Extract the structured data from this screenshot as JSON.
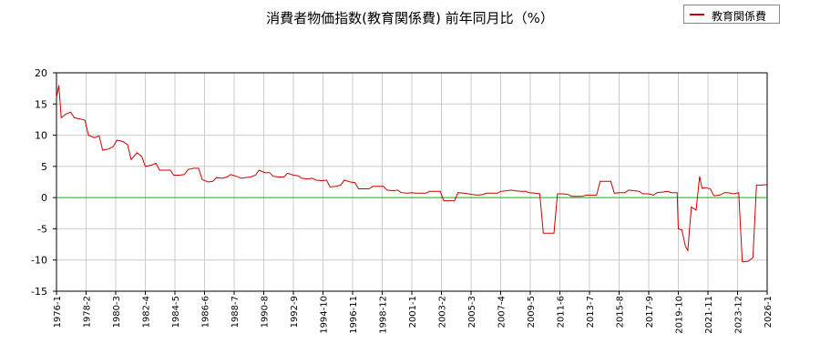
{
  "chart_data": {
    "type": "line",
    "title": "消費者物価指数(教育関係費) 前年同月比（%）",
    "legend": {
      "position": "top-right",
      "entries": [
        "教育関係費"
      ]
    },
    "grid": true,
    "ylim": [
      -15,
      20
    ],
    "yticks": [
      20,
      15,
      10,
      5,
      0,
      -5,
      -10,
      -15
    ],
    "xlim": [
      "1976-01",
      "2026-01"
    ],
    "xticks": [
      "1976-1",
      "1978-2",
      "1980-3",
      "1982-4",
      "1984-5",
      "1986-6",
      "1988-7",
      "1990-8",
      "1992-9",
      "1994-10",
      "1996-11",
      "1998-12",
      "2001-1",
      "2003-2",
      "2005-3",
      "2007-4",
      "2009-5",
      "2011-6",
      "2013-7",
      "2015-8",
      "2017-9",
      "2019-10",
      "2021-11",
      "2023-12",
      "2026-1"
    ],
    "series": [
      {
        "name": "教育関係費",
        "color": "#cc0000",
        "points": [
          [
            "1976-01",
            16.0
          ],
          [
            "1976-03",
            18.0
          ],
          [
            "1976-05",
            12.8
          ],
          [
            "1976-09",
            13.4
          ],
          [
            "1977-01",
            13.7
          ],
          [
            "1977-04",
            12.8
          ],
          [
            "1977-09",
            12.6
          ],
          [
            "1978-01",
            12.4
          ],
          [
            "1978-04",
            10.0
          ],
          [
            "1978-09",
            9.6
          ],
          [
            "1979-01",
            9.9
          ],
          [
            "1979-04",
            7.6
          ],
          [
            "1979-09",
            7.8
          ],
          [
            "1980-01",
            8.2
          ],
          [
            "1980-04",
            9.2
          ],
          [
            "1980-09",
            9.0
          ],
          [
            "1981-01",
            8.5
          ],
          [
            "1981-04",
            6.1
          ],
          [
            "1981-09",
            7.2
          ],
          [
            "1982-01",
            6.6
          ],
          [
            "1982-04",
            5.0
          ],
          [
            "1982-09",
            5.2
          ],
          [
            "1983-01",
            5.5
          ],
          [
            "1983-04",
            4.4
          ],
          [
            "1983-09",
            4.4
          ],
          [
            "1984-01",
            4.4
          ],
          [
            "1984-04",
            3.6
          ],
          [
            "1984-09",
            3.6
          ],
          [
            "1985-01",
            3.7
          ],
          [
            "1985-04",
            4.5
          ],
          [
            "1985-09",
            4.7
          ],
          [
            "1986-01",
            4.7
          ],
          [
            "1986-04",
            2.9
          ],
          [
            "1986-09",
            2.5
          ],
          [
            "1987-01",
            2.6
          ],
          [
            "1987-04",
            3.2
          ],
          [
            "1987-09",
            3.1
          ],
          [
            "1988-01",
            3.3
          ],
          [
            "1988-04",
            3.7
          ],
          [
            "1988-09",
            3.4
          ],
          [
            "1989-01",
            3.1
          ],
          [
            "1989-04",
            3.2
          ],
          [
            "1989-09",
            3.3
          ],
          [
            "1990-01",
            3.6
          ],
          [
            "1990-04",
            4.4
          ],
          [
            "1990-09",
            4.0
          ],
          [
            "1991-01",
            4.0
          ],
          [
            "1991-04",
            3.4
          ],
          [
            "1991-09",
            3.3
          ],
          [
            "1992-01",
            3.3
          ],
          [
            "1992-04",
            3.9
          ],
          [
            "1992-09",
            3.6
          ],
          [
            "1993-01",
            3.5
          ],
          [
            "1993-04",
            3.1
          ],
          [
            "1993-09",
            3.0
          ],
          [
            "1994-01",
            3.1
          ],
          [
            "1994-04",
            2.8
          ],
          [
            "1994-09",
            2.7
          ],
          [
            "1995-01",
            2.8
          ],
          [
            "1995-04",
            1.7
          ],
          [
            "1995-09",
            1.8
          ],
          [
            "1996-01",
            2.0
          ],
          [
            "1996-04",
            2.8
          ],
          [
            "1996-09",
            2.5
          ],
          [
            "1997-01",
            2.4
          ],
          [
            "1997-04",
            1.4
          ],
          [
            "1997-09",
            1.4
          ],
          [
            "1998-01",
            1.4
          ],
          [
            "1998-04",
            1.8
          ],
          [
            "1998-09",
            1.8
          ],
          [
            "1999-01",
            1.8
          ],
          [
            "1999-04",
            1.2
          ],
          [
            "1999-09",
            1.1
          ],
          [
            "2000-01",
            1.2
          ],
          [
            "2000-04",
            0.8
          ],
          [
            "2000-09",
            0.7
          ],
          [
            "2001-01",
            0.8
          ],
          [
            "2001-04",
            0.7
          ],
          [
            "2001-09",
            0.7
          ],
          [
            "2002-01",
            0.7
          ],
          [
            "2002-04",
            1.0
          ],
          [
            "2002-09",
            1.0
          ],
          [
            "2003-01",
            1.0
          ],
          [
            "2003-04",
            -0.5
          ],
          [
            "2003-09",
            -0.5
          ],
          [
            "2004-01",
            -0.5
          ],
          [
            "2004-04",
            0.8
          ],
          [
            "2004-09",
            0.7
          ],
          [
            "2005-01",
            0.6
          ],
          [
            "2005-04",
            0.5
          ],
          [
            "2005-09",
            0.4
          ],
          [
            "2006-01",
            0.5
          ],
          [
            "2006-04",
            0.7
          ],
          [
            "2006-09",
            0.7
          ],
          [
            "2007-01",
            0.7
          ],
          [
            "2007-04",
            1.0
          ],
          [
            "2007-09",
            1.1
          ],
          [
            "2008-01",
            1.2
          ],
          [
            "2008-04",
            1.1
          ],
          [
            "2008-09",
            1.0
          ],
          [
            "2009-01",
            1.0
          ],
          [
            "2009-04",
            0.8
          ],
          [
            "2009-09",
            0.7
          ],
          [
            "2010-01",
            0.6
          ],
          [
            "2010-04",
            -5.7
          ],
          [
            "2010-09",
            -5.7
          ],
          [
            "2011-01",
            -5.7
          ],
          [
            "2011-04",
            0.6
          ],
          [
            "2011-09",
            0.6
          ],
          [
            "2012-01",
            0.5
          ],
          [
            "2012-04",
            0.2
          ],
          [
            "2012-09",
            0.2
          ],
          [
            "2013-01",
            0.2
          ],
          [
            "2013-04",
            0.4
          ],
          [
            "2013-09",
            0.4
          ],
          [
            "2014-01",
            0.4
          ],
          [
            "2014-04",
            2.6
          ],
          [
            "2014-09",
            2.6
          ],
          [
            "2015-01",
            2.6
          ],
          [
            "2015-04",
            0.7
          ],
          [
            "2015-09",
            0.8
          ],
          [
            "2016-01",
            0.8
          ],
          [
            "2016-04",
            1.2
          ],
          [
            "2016-09",
            1.1
          ],
          [
            "2017-01",
            1.0
          ],
          [
            "2017-04",
            0.6
          ],
          [
            "2017-09",
            0.6
          ],
          [
            "2018-01",
            0.4
          ],
          [
            "2018-04",
            0.8
          ],
          [
            "2018-09",
            0.9
          ],
          [
            "2019-01",
            1.0
          ],
          [
            "2019-04",
            0.8
          ],
          [
            "2019-09",
            0.8
          ],
          [
            "2019-10",
            -5.0
          ],
          [
            "2020-01",
            -5.2
          ],
          [
            "2020-04",
            -7.8
          ],
          [
            "2020-06",
            -8.5
          ],
          [
            "2020-09",
            -1.5
          ],
          [
            "2021-01",
            -2.0
          ],
          [
            "2021-04",
            3.4
          ],
          [
            "2021-06",
            1.5
          ],
          [
            "2021-09",
            1.6
          ],
          [
            "2022-01",
            1.4
          ],
          [
            "2022-04",
            0.3
          ],
          [
            "2022-09",
            0.4
          ],
          [
            "2023-01",
            0.8
          ],
          [
            "2023-04",
            0.8
          ],
          [
            "2023-09",
            0.6
          ],
          [
            "2024-01",
            0.8
          ],
          [
            "2024-04",
            -10.3
          ],
          [
            "2024-09",
            -10.2
          ],
          [
            "2025-01",
            -9.6
          ],
          [
            "2025-04",
            2.0
          ],
          [
            "2025-09",
            2.0
          ],
          [
            "2026-01",
            2.1
          ]
        ]
      }
    ],
    "reference_line": {
      "y": 0,
      "color": "#00cc00"
    },
    "colors": {
      "axis": "#000000",
      "grid": "#cccccc",
      "background": "#ffffff"
    }
  }
}
